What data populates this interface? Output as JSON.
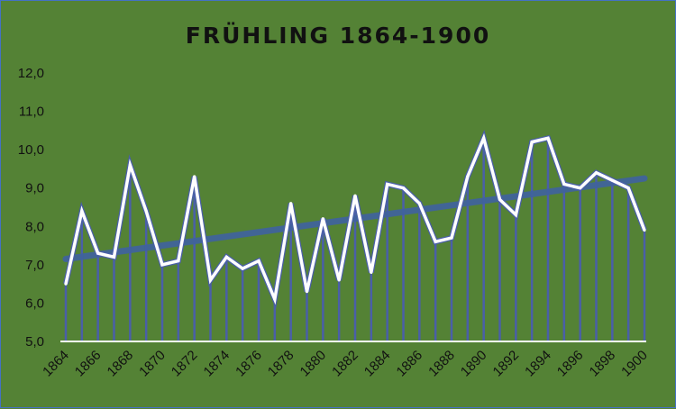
{
  "chart_data": {
    "type": "line",
    "title": "FRÜHLING  1864-1900",
    "xlabel": "",
    "ylabel": "",
    "ylim": [
      5.0,
      12.0
    ],
    "yticks": [
      "5,0",
      "6,0",
      "7,0",
      "8,0",
      "9,0",
      "10,0",
      "11,0",
      "12,0"
    ],
    "x": [
      1864,
      1865,
      1866,
      1867,
      1868,
      1869,
      1870,
      1871,
      1872,
      1873,
      1874,
      1875,
      1876,
      1877,
      1878,
      1879,
      1880,
      1881,
      1882,
      1883,
      1884,
      1885,
      1886,
      1887,
      1888,
      1889,
      1890,
      1891,
      1892,
      1893,
      1894,
      1895,
      1896,
      1897,
      1898,
      1899,
      1900
    ],
    "xtick_labels": [
      "1864",
      "1866",
      "1868",
      "1870",
      "1872",
      "1874",
      "1876",
      "1878",
      "1880",
      "1882",
      "1884",
      "1886",
      "1888",
      "1890",
      "1892",
      "1894",
      "1896",
      "1898",
      "1900"
    ],
    "series": [
      {
        "values": [
          6.5,
          8.4,
          7.3,
          7.2,
          9.6,
          8.4,
          7.0,
          7.1,
          9.3,
          6.6,
          7.2,
          6.9,
          7.1,
          6.1,
          8.6,
          6.3,
          8.2,
          6.6,
          8.8,
          6.8,
          9.1,
          9.0,
          8.6,
          7.6,
          7.7,
          9.3,
          10.3,
          8.7,
          8.3,
          10.2,
          10.3,
          9.1,
          9.0,
          9.4,
          9.2,
          9.0,
          7.9
        ],
        "line_color": "#ffffff",
        "drop_color": "#4a5fa8"
      }
    ],
    "trendline": {
      "type": "linear",
      "start": 7.15,
      "end": 9.25,
      "color": "#3f62a0"
    },
    "grid": false,
    "legend": "none"
  }
}
